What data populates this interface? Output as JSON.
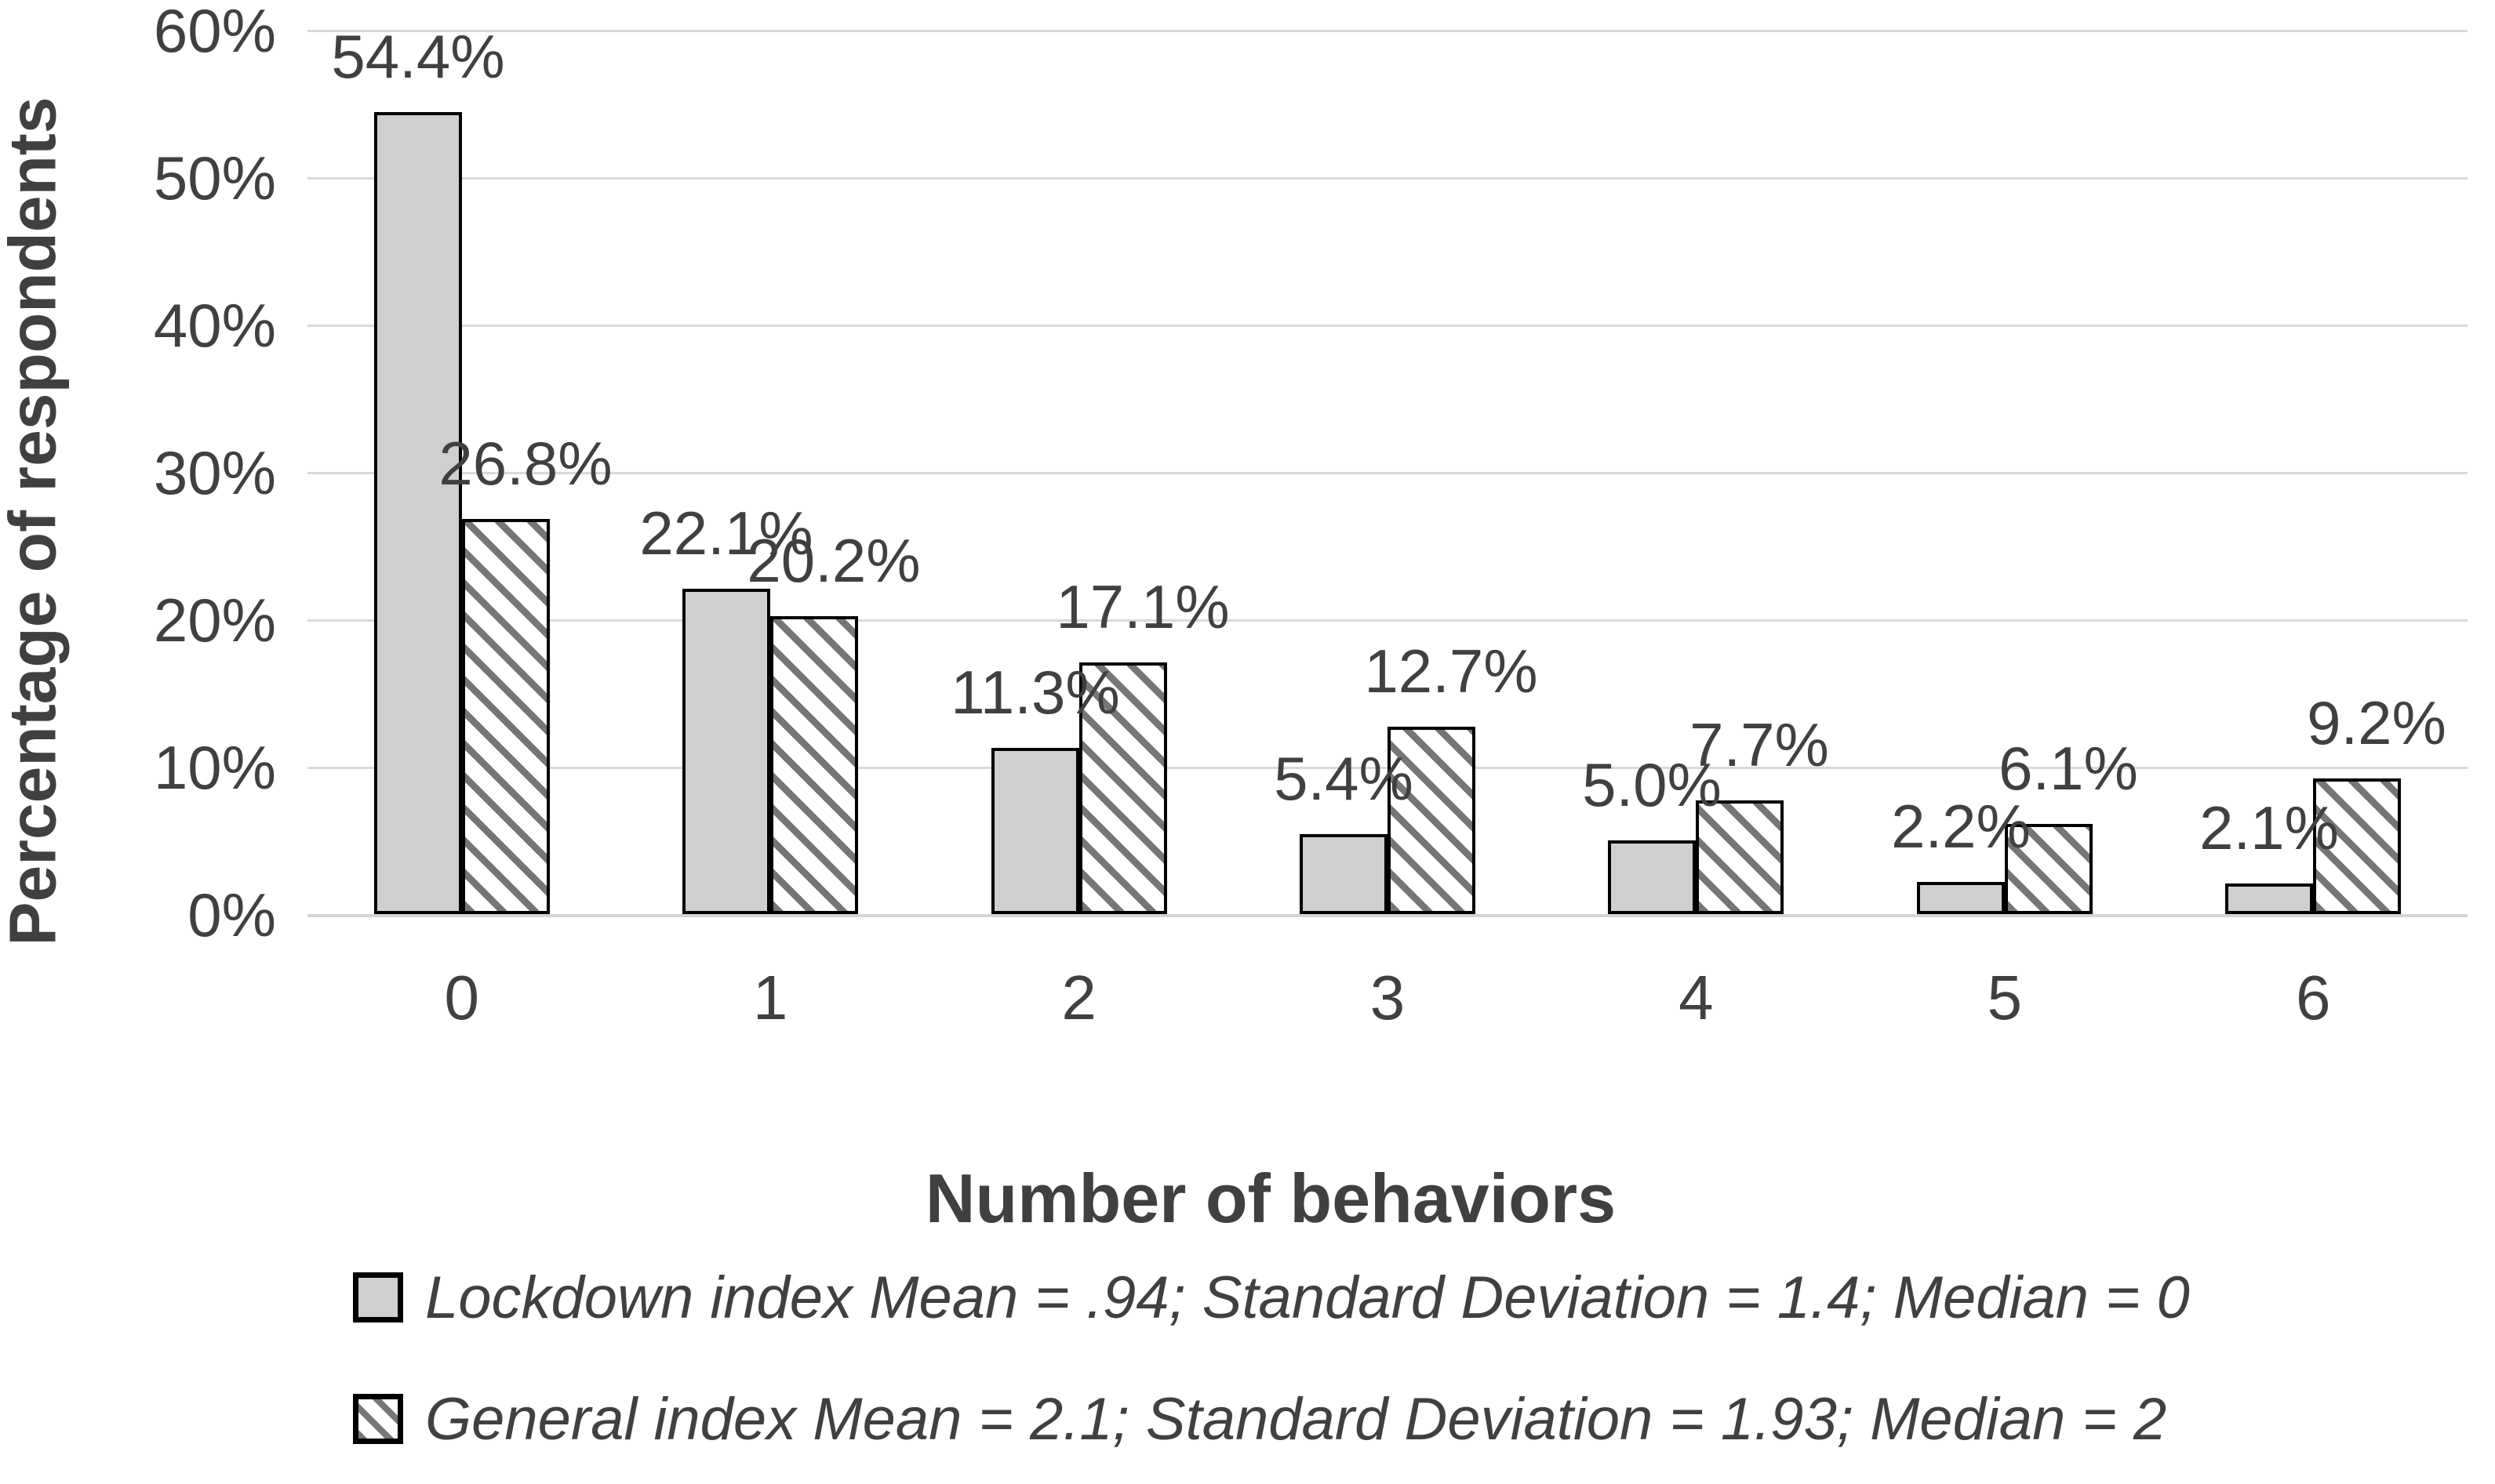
{
  "chart_data": {
    "type": "bar",
    "categories": [
      "0",
      "1",
      "2",
      "3",
      "4",
      "5",
      "6"
    ],
    "series": [
      {
        "name": "Lockdown index",
        "style": "solid",
        "values": [
          54.4,
          22.1,
          11.3,
          5.4,
          5.0,
          2.2,
          2.1
        ],
        "labels": [
          "54.4%",
          "22.1%",
          "11.3%",
          "5.4%",
          "5.0%",
          "2.2%",
          "2.1%"
        ]
      },
      {
        "name": "General index",
        "style": "hatched",
        "values": [
          26.8,
          20.2,
          17.1,
          12.7,
          7.7,
          6.1,
          9.2
        ],
        "labels": [
          "26.8%",
          "20.2%",
          "17.1%",
          "12.7%",
          "7.7%",
          "6.1%",
          "9.2%"
        ]
      }
    ],
    "xlabel": "Number of behaviors",
    "ylabel": "Percentage of respondents",
    "ylim": [
      0,
      60
    ],
    "y_ticks": [
      {
        "label": "0%",
        "value": 0
      },
      {
        "label": "10%",
        "value": 10
      },
      {
        "label": "20%",
        "value": 20
      },
      {
        "label": "30%",
        "value": 30
      },
      {
        "label": "40%",
        "value": 40
      },
      {
        "label": "50%",
        "value": 50
      },
      {
        "label": "60%",
        "value": 60
      }
    ],
    "grid": true,
    "legend_position": "bottom",
    "legend": [
      "Lockdown index Mean = .94; Standard Deviation = 1.4; Median = 0",
      "General index Mean = 2.1; Standard Deviation = 1.93; Median = 2"
    ]
  },
  "colors": {
    "text": "#404040",
    "gridline": "#d9d9d9",
    "bar_fill": "#d1cece",
    "bar_border": "#000000",
    "hatch_stripe": "#767676",
    "background": "#ffffff"
  }
}
